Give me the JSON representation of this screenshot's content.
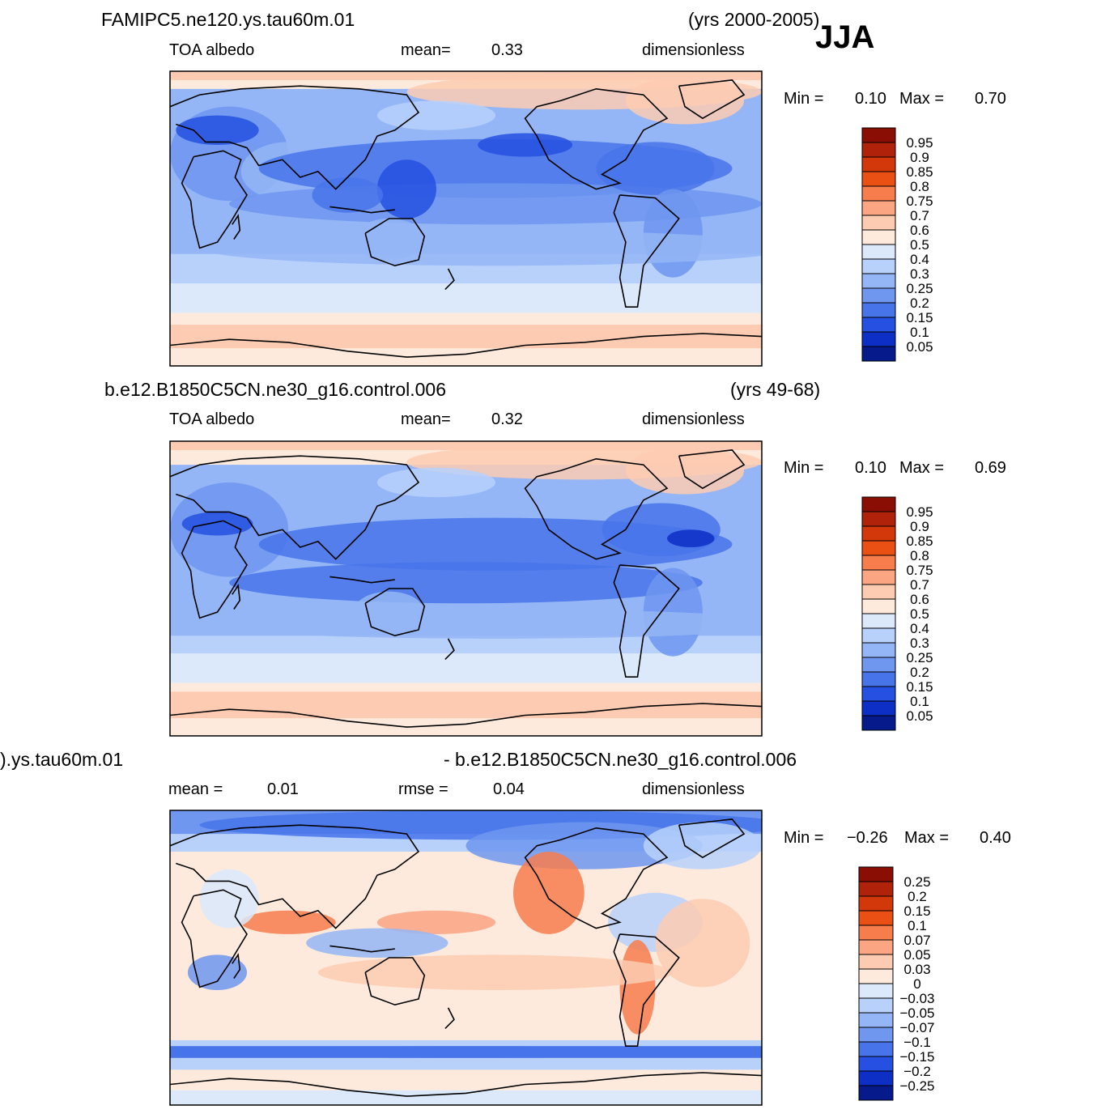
{
  "season": "JJA",
  "icons": {
    "coastline": "coastline-icon"
  },
  "panels": [
    {
      "case": "FAMIPC5.ne120.ys.tau60m.01",
      "years": "(yrs 2000-2005)",
      "variable": "TOA  albedo",
      "stat1_label": "mean=",
      "stat1_value": "0.33",
      "units": "dimensionless",
      "min_label": "Min  =",
      "min_value": "0.10",
      "max_label": "Max  =",
      "max_value": "0.70",
      "colorbar": {
        "labels": [
          "0.95",
          "0.9",
          "0.85",
          "0.8",
          "0.75",
          "0.7",
          "0.6",
          "0.5",
          "0.4",
          "0.3",
          "0.25",
          "0.2",
          "0.15",
          "0.1",
          "0.05"
        ],
        "colors": [
          "#8b0e05",
          "#b0230a",
          "#d23809",
          "#ea4f14",
          "#f77d4d",
          "#fca582",
          "#fdcbb1",
          "#feeadc",
          "#dbe9fb",
          "#b7d1fb",
          "#94b6f6",
          "#6f97f0",
          "#4874ea",
          "#2550e1",
          "#0d2fc5",
          "#061a8c"
        ]
      }
    },
    {
      "case": "b.e12.B1850C5CN.ne30_g16.control.006",
      "years": "(yrs 49-68)",
      "variable": "TOA  albedo",
      "stat1_label": "mean=",
      "stat1_value": "0.32",
      "units": "dimensionless",
      "min_label": "Min  =",
      "min_value": "0.10",
      "max_label": "Max  =",
      "max_value": "0.69",
      "colorbar": {
        "labels": [
          "0.95",
          "0.9",
          "0.85",
          "0.8",
          "0.75",
          "0.7",
          "0.6",
          "0.5",
          "0.4",
          "0.3",
          "0.25",
          "0.2",
          "0.15",
          "0.1",
          "0.05"
        ],
        "colors": [
          "#8b0e05",
          "#b0230a",
          "#d23809",
          "#ea4f14",
          "#f77d4d",
          "#fca582",
          "#fdcbb1",
          "#feeadc",
          "#dbe9fb",
          "#b7d1fb",
          "#94b6f6",
          "#6f97f0",
          "#4874ea",
          "#2550e1",
          "#0d2fc5",
          "#061a8c"
        ]
      }
    },
    {
      "case": ").ys.tau60m.01",
      "years": "- b.e12.B1850C5CN.ne30_g16.control.006",
      "variable": "mean  =",
      "stat1_label": "",
      "stat1_value": "0.01",
      "stat2_label": "rmse  =",
      "stat2_value": "0.04",
      "units": "dimensionless",
      "min_label": "Min  =",
      "min_value": "−0.26",
      "max_label": "Max  =",
      "max_value": "0.40",
      "colorbar": {
        "labels": [
          "0.25",
          "0.2",
          "0.15",
          "0.1",
          "0.07",
          "0.05",
          "0.03",
          "0",
          "−0.03",
          "−0.05",
          "−0.07",
          "−0.1",
          "−0.15",
          "−0.2",
          "−0.25"
        ],
        "colors": [
          "#8b0e05",
          "#b0230a",
          "#d23809",
          "#ea4f14",
          "#f77d4d",
          "#fca582",
          "#fdcbb1",
          "#feeadc",
          "#dbe9fb",
          "#b7d1fb",
          "#94b6f6",
          "#6f97f0",
          "#4874ea",
          "#2550e1",
          "#0d2fc5",
          "#061a8c"
        ]
      }
    }
  ]
}
